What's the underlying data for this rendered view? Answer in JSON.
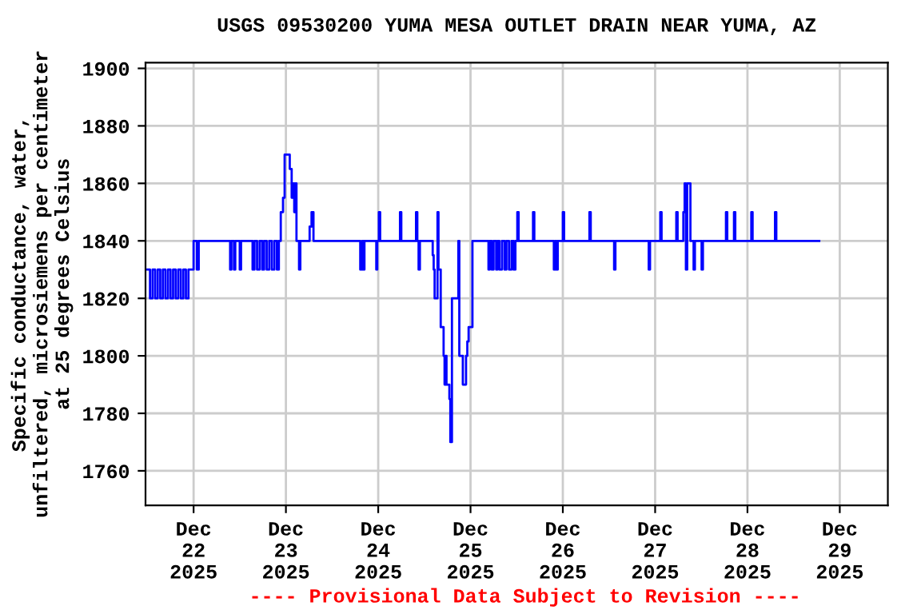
{
  "chart_data": {
    "type": "step",
    "title": "USGS 09530200 YUMA MESA OUTLET DRAIN NEAR YUMA, AZ",
    "ylabel": "Specific conductance, water,\nunfiltered, microsiemens per centimeter\nat 25 degrees Celsius",
    "annotations": [
      "---- Provisional Data Subject to Revision ----"
    ],
    "series": [
      {
        "color": "#0000ff",
        "x": [
          "2025-12-21T12:00",
          "2025-12-21T12:40",
          "2025-12-21T13:20",
          "2025-12-21T14:00",
          "2025-12-21T14:40",
          "2025-12-21T15:20",
          "2025-12-21T16:00",
          "2025-12-21T16:40",
          "2025-12-21T17:20",
          "2025-12-21T18:00",
          "2025-12-21T18:40",
          "2025-12-21T19:20",
          "2025-12-21T20:00",
          "2025-12-21T20:40",
          "2025-12-21T21:20",
          "2025-12-21T22:00",
          "2025-12-21T22:40",
          "2025-12-22T00:00",
          "2025-12-22T00:50",
          "2025-12-22T01:20",
          "2025-12-22T09:30",
          "2025-12-22T09:50",
          "2025-12-22T10:30",
          "2025-12-22T10:50",
          "2025-12-22T12:00",
          "2025-12-22T12:20",
          "2025-12-22T15:20",
          "2025-12-22T15:50",
          "2025-12-22T16:30",
          "2025-12-22T17:10",
          "2025-12-22T17:50",
          "2025-12-22T18:20",
          "2025-12-22T19:00",
          "2025-12-22T19:40",
          "2025-12-22T20:20",
          "2025-12-22T21:00",
          "2025-12-22T21:40",
          "2025-12-22T22:10",
          "2025-12-22T22:40",
          "2025-12-22T23:15",
          "2025-12-22T23:40",
          "2025-12-23T01:00",
          "2025-12-23T01:30",
          "2025-12-23T01:50",
          "2025-12-23T02:10",
          "2025-12-23T02:20",
          "2025-12-23T02:45",
          "2025-12-23T03:25",
          "2025-12-23T03:45",
          "2025-12-23T06:10",
          "2025-12-23T06:40",
          "2025-12-23T07:10",
          "2025-12-23T19:20",
          "2025-12-23T19:50",
          "2025-12-23T20:10",
          "2025-12-23T20:25",
          "2025-12-23T23:30",
          "2025-12-23T23:45",
          "2025-12-24T00:10",
          "2025-12-24T00:30",
          "2025-12-24T05:40",
          "2025-12-24T06:00",
          "2025-12-24T09:50",
          "2025-12-24T10:10",
          "2025-12-24T10:30",
          "2025-12-24T10:50",
          "2025-12-24T14:10",
          "2025-12-24T14:25",
          "2025-12-24T14:40",
          "2025-12-24T15:25",
          "2025-12-24T15:40",
          "2025-12-24T16:15",
          "2025-12-24T17:00",
          "2025-12-24T17:15",
          "2025-12-24T17:30",
          "2025-12-24T17:45",
          "2025-12-24T18:30",
          "2025-12-24T18:45",
          "2025-12-24T19:10",
          "2025-12-24T20:50",
          "2025-12-24T21:05",
          "2025-12-24T22:00",
          "2025-12-24T22:50",
          "2025-12-24T23:10",
          "2025-12-24T23:30",
          "2025-12-25T00:30",
          "2025-12-25T04:40",
          "2025-12-25T05:00",
          "2025-12-25T05:30",
          "2025-12-25T06:00",
          "2025-12-25T06:40",
          "2025-12-25T07:00",
          "2025-12-25T07:30",
          "2025-12-25T08:10",
          "2025-12-25T08:50",
          "2025-12-25T09:20",
          "2025-12-25T10:00",
          "2025-12-25T10:40",
          "2025-12-25T11:10",
          "2025-12-25T11:40",
          "2025-12-25T12:10",
          "2025-12-25T12:30",
          "2025-12-25T16:15",
          "2025-12-25T16:35",
          "2025-12-25T21:40",
          "2025-12-25T22:00",
          "2025-12-25T22:20",
          "2025-12-25T22:40",
          "2025-12-26T00:00",
          "2025-12-26T00:20",
          "2025-12-26T06:55",
          "2025-12-26T07:15",
          "2025-12-26T13:20",
          "2025-12-26T13:40",
          "2025-12-26T22:20",
          "2025-12-26T22:40",
          "2025-12-27T01:20",
          "2025-12-27T01:40",
          "2025-12-27T05:30",
          "2025-12-27T05:50",
          "2025-12-27T07:20",
          "2025-12-27T07:40",
          "2025-12-27T08:00",
          "2025-12-27T08:20",
          "2025-12-27T09:10",
          "2025-12-27T10:00",
          "2025-12-27T10:20",
          "2025-12-27T12:05",
          "2025-12-27T12:25",
          "2025-12-27T18:25",
          "2025-12-27T18:45",
          "2025-12-27T20:30",
          "2025-12-27T20:50",
          "2025-12-28T01:00",
          "2025-12-28T01:20",
          "2025-12-28T07:10",
          "2025-12-28T07:30",
          "2025-12-28T18:40"
        ],
        "values": [
          1830,
          1820,
          1830,
          1820,
          1830,
          1820,
          1830,
          1820,
          1830,
          1820,
          1830,
          1820,
          1830,
          1820,
          1830,
          1820,
          1830,
          1840,
          1830,
          1840,
          1830,
          1840,
          1830,
          1840,
          1830,
          1840,
          1830,
          1840,
          1830,
          1840,
          1830,
          1840,
          1830,
          1840,
          1830,
          1840,
          1830,
          1840,
          1850,
          1855,
          1870,
          1865,
          1855,
          1860,
          1850,
          1860,
          1840,
          1830,
          1840,
          1845,
          1850,
          1840,
          1830,
          1840,
          1830,
          1840,
          1830,
          1840,
          1850,
          1840,
          1850,
          1840,
          1850,
          1840,
          1830,
          1840,
          1835,
          1830,
          1820,
          1850,
          1830,
          1810,
          1800,
          1790,
          1800,
          1790,
          1785,
          1770,
          1820,
          1840,
          1800,
          1790,
          1800,
          1805,
          1810,
          1840,
          1830,
          1840,
          1830,
          1840,
          1830,
          1840,
          1830,
          1840,
          1830,
          1840,
          1830,
          1840,
          1830,
          1840,
          1850,
          1840,
          1850,
          1840,
          1830,
          1840,
          1830,
          1840,
          1850,
          1840,
          1850,
          1840,
          1830,
          1840,
          1830,
          1840,
          1850,
          1840,
          1850,
          1840,
          1850,
          1860,
          1830,
          1860,
          1840,
          1830,
          1840,
          1830,
          1840,
          1850,
          1840,
          1850,
          1840,
          1850,
          1840,
          1850,
          1840,
          1840
        ]
      }
    ],
    "xlim": [
      "2025-12-21T11:30",
      "2025-12-29T12:30"
    ],
    "xticks": [
      {
        "value": "2025-12-22",
        "label": "Dec\n22\n2025"
      },
      {
        "value": "2025-12-23",
        "label": "Dec\n23\n2025"
      },
      {
        "value": "2025-12-24",
        "label": "Dec\n24\n2025"
      },
      {
        "value": "2025-12-25",
        "label": "Dec\n25\n2025"
      },
      {
        "value": "2025-12-26",
        "label": "Dec\n26\n2025"
      },
      {
        "value": "2025-12-27",
        "label": "Dec\n27\n2025"
      },
      {
        "value": "2025-12-28",
        "label": "Dec\n28\n2025"
      },
      {
        "value": "2025-12-29",
        "label": "Dec\n29\n2025"
      }
    ],
    "ylim": [
      1748,
      1902
    ],
    "yticks": [
      1760,
      1780,
      1800,
      1820,
      1840,
      1860,
      1880,
      1900
    ],
    "grid": true,
    "legend": false
  }
}
